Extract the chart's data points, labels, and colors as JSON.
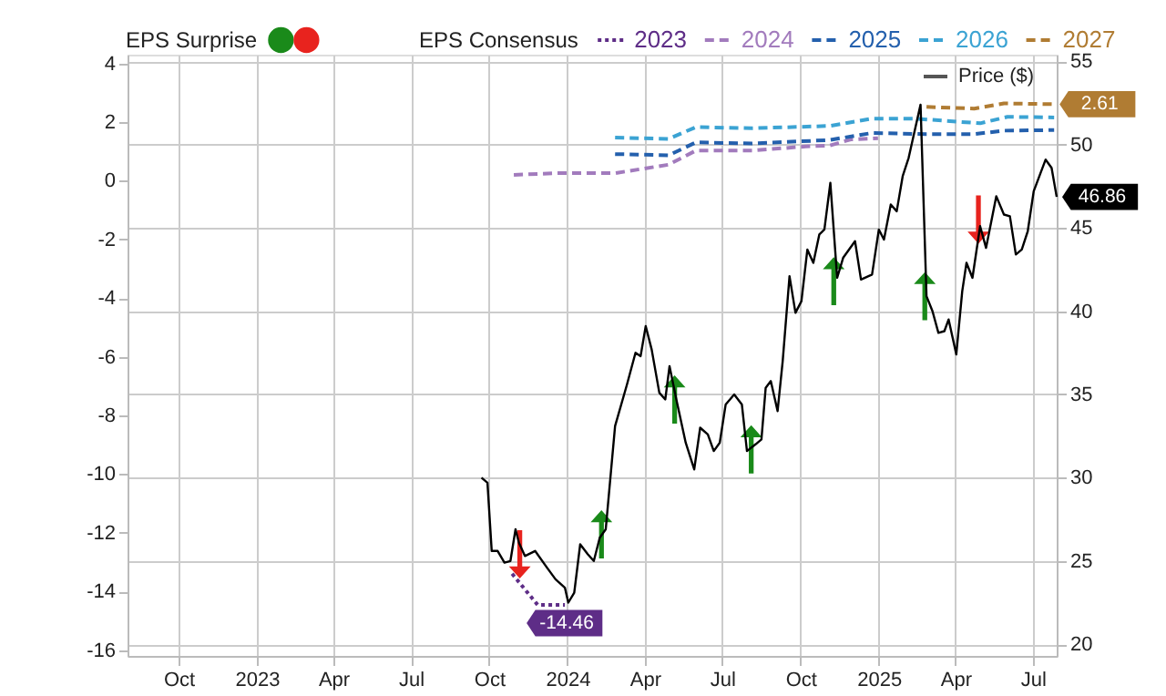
{
  "chart_data": {
    "type": "line",
    "legend_title": "EPS Consensus",
    "annotations": [
      "EPS Surprise"
    ],
    "xlim": [
      "2022-08-02",
      "2025-07-29"
    ],
    "xticks": [
      {
        "value": "2022-10-01",
        "label": "Oct"
      },
      {
        "value": "2023-01-01",
        "label": "2023"
      },
      {
        "value": "2023-04-01",
        "label": "Apr"
      },
      {
        "value": "2023-07-01",
        "label": "Jul"
      },
      {
        "value": "2023-10-01",
        "label": "Oct"
      },
      {
        "value": "2024-01-01",
        "label": "2024"
      },
      {
        "value": "2024-04-01",
        "label": "Apr"
      },
      {
        "value": "2024-07-01",
        "label": "Jul"
      },
      {
        "value": "2024-10-01",
        "label": "Oct"
      },
      {
        "value": "2025-01-01",
        "label": "2025"
      },
      {
        "value": "2025-04-01",
        "label": "Apr"
      },
      {
        "value": "2025-07-01",
        "label": "Jul"
      }
    ],
    "ylim": [
      -16.2,
      4.3
    ],
    "yticks": [
      -16,
      -14,
      -12,
      -10,
      -8,
      -6,
      -4,
      -2,
      0,
      2,
      4
    ],
    "y2lim": [
      19.3,
      55.4
    ],
    "y2ticks": [
      20,
      25,
      30,
      35,
      40,
      45,
      50,
      55
    ],
    "grid": true,
    "legend": "top",
    "series": [
      {
        "name": "2023",
        "color": "#5e2d87",
        "line_style": "dotted",
        "x": [
          "2023-10-28",
          "2023-11-27",
          "2023-12-29"
        ],
        "values": [
          -13.4,
          -14.46,
          -14.46
        ],
        "value_labels": [
          null,
          null,
          "-14.46"
        ]
      },
      {
        "name": "2024",
        "color": "#a27bbd",
        "line_style": "dashed",
        "x": [
          "2023-10-30",
          "2023-12-18",
          "2024-02-26",
          "2024-04-29",
          "2024-05-31",
          "2024-08-05",
          "2024-10-07",
          "2024-11-04",
          "2024-11-29",
          "2024-12-31"
        ],
        "values": [
          0.2,
          0.26,
          0.26,
          0.55,
          1.03,
          1.03,
          1.17,
          1.2,
          1.41,
          1.45
        ]
      },
      {
        "name": "2025",
        "color": "#2460ad",
        "line_style": "dashed",
        "x": [
          "2024-02-26",
          "2024-04-29",
          "2024-05-31",
          "2024-08-05",
          "2024-11-04",
          "2024-12-24",
          "2025-02-26",
          "2025-04-23",
          "2025-05-28",
          "2025-07-26"
        ],
        "values": [
          0.91,
          0.87,
          1.31,
          1.27,
          1.39,
          1.63,
          1.59,
          1.59,
          1.71,
          1.73
        ]
      },
      {
        "name": "2026",
        "color": "#3ba3d3",
        "line_style": "dashed",
        "x": [
          "2024-02-26",
          "2024-04-29",
          "2024-05-31",
          "2024-08-05",
          "2024-11-04",
          "2024-12-24",
          "2025-02-12",
          "2025-04-30",
          "2025-06-01",
          "2025-07-26"
        ],
        "values": [
          1.47,
          1.43,
          1.83,
          1.79,
          1.87,
          2.12,
          2.12,
          1.96,
          2.18,
          2.16
        ]
      },
      {
        "name": "2027",
        "color": "#b07c33",
        "line_style": "dashed",
        "x": [
          "2025-02-26",
          "2025-04-23",
          "2025-05-28",
          "2025-07-26"
        ],
        "values": [
          2.52,
          2.46,
          2.64,
          2.61
        ],
        "value_labels": [
          null,
          null,
          null,
          "2.61"
        ]
      },
      {
        "name": "Price ($)",
        "color": "#000000",
        "line_style": "solid",
        "axis": "y2",
        "x": [
          "2023-09-22",
          "2023-09-29",
          "2023-10-04",
          "2023-10-11",
          "2023-10-19",
          "2023-10-26",
          "2023-11-01",
          "2023-11-05",
          "2023-11-12",
          "2023-11-24",
          "2023-12-08",
          "2023-12-18",
          "2023-12-29",
          "2024-01-02",
          "2024-01-09",
          "2024-01-16",
          "2024-01-25",
          "2024-02-01",
          "2024-02-08",
          "2024-02-15",
          "2024-02-26",
          "2024-03-11",
          "2024-03-21",
          "2024-03-27",
          "2024-04-02",
          "2024-04-09",
          "2024-04-18",
          "2024-04-25",
          "2024-04-30",
          "2024-05-08",
          "2024-05-19",
          "2024-05-29",
          "2024-06-05",
          "2024-06-14",
          "2024-06-21",
          "2024-06-28",
          "2024-07-05",
          "2024-07-15",
          "2024-07-24",
          "2024-07-30",
          "2024-08-09",
          "2024-08-16",
          "2024-08-21",
          "2024-08-27",
          "2024-09-04",
          "2024-09-10",
          "2024-09-18",
          "2024-09-25",
          "2024-10-02",
          "2024-10-09",
          "2024-10-16",
          "2024-10-23",
          "2024-10-29",
          "2024-11-05",
          "2024-11-13",
          "2024-11-20",
          "2024-12-04",
          "2024-12-11",
          "2024-12-24",
          "2025-01-01",
          "2025-01-07",
          "2025-01-15",
          "2025-01-22",
          "2025-01-29",
          "2025-02-05",
          "2025-02-19",
          "2025-02-26",
          "2025-03-05",
          "2025-03-12",
          "2025-03-19",
          "2025-03-24",
          "2025-04-02",
          "2025-04-09",
          "2025-04-14",
          "2025-04-21",
          "2025-04-30",
          "2025-05-07",
          "2025-05-19",
          "2025-05-28",
          "2025-06-04",
          "2025-06-11",
          "2025-06-18",
          "2025-06-25",
          "2025-07-02",
          "2025-07-16",
          "2025-07-23",
          "2025-07-29"
        ],
        "values": [
          30.0,
          29.7,
          25.6,
          25.6,
          24.9,
          25.0,
          26.9,
          26.1,
          25.3,
          25.6,
          24.6,
          23.9,
          23.4,
          22.5,
          23.1,
          26.0,
          25.4,
          25.0,
          26.4,
          26.9,
          33.1,
          35.6,
          37.5,
          37.3,
          39.1,
          37.7,
          35.1,
          34.7,
          36.7,
          34.7,
          32.1,
          30.5,
          33.0,
          32.6,
          31.6,
          32.1,
          34.4,
          35.0,
          34.4,
          31.6,
          32.0,
          32.3,
          35.4,
          35.8,
          34.0,
          37.0,
          42.1,
          39.9,
          40.6,
          43.7,
          42.9,
          44.6,
          44.9,
          47.7,
          42.0,
          43.2,
          44.2,
          41.9,
          42.2,
          44.9,
          44.3,
          46.4,
          46.0,
          48.1,
          49.2,
          52.4,
          40.9,
          40.0,
          38.7,
          38.8,
          39.5,
          37.4,
          41.2,
          42.9,
          42.0,
          45.1,
          43.8,
          46.9,
          45.8,
          45.7,
          43.4,
          43.7,
          44.8,
          47.2,
          49.1,
          48.6,
          46.86
        ],
        "value_labels": [
          null,
          null,
          null,
          null,
          null,
          null,
          null,
          null,
          null,
          null,
          null,
          null,
          null,
          null,
          null,
          null,
          null,
          null,
          null,
          null,
          null,
          null,
          null,
          null,
          null,
          null,
          null,
          null,
          null,
          null,
          null,
          null,
          null,
          null,
          null,
          null,
          null,
          null,
          null,
          null,
          null,
          null,
          null,
          null,
          null,
          null,
          null,
          null,
          null,
          null,
          null,
          null,
          null,
          null,
          null,
          null,
          null,
          null,
          null,
          null,
          null,
          null,
          null,
          null,
          null,
          null,
          null,
          null,
          null,
          null,
          null,
          null,
          null,
          null,
          null,
          null,
          null,
          null,
          null,
          null,
          null,
          null,
          null,
          null,
          null,
          null,
          "46.86"
        ]
      },
      {
        "type": "scatter",
        "color": "#1a8a1a",
        "axis": "y2",
        "x": [
          "2024-02-10",
          "2024-05-06",
          "2024-08-04",
          "2024-11-09",
          "2025-02-24"
        ],
        "values": [
          26.6,
          34.7,
          31.7,
          41.8,
          40.9
        ]
      },
      {
        "type": "scatter",
        "color": "#e8231e",
        "axis": "y2",
        "x": [
          "2023-11-06",
          "2025-04-28"
        ],
        "values": [
          25.4,
          45.5
        ]
      }
    ]
  }
}
